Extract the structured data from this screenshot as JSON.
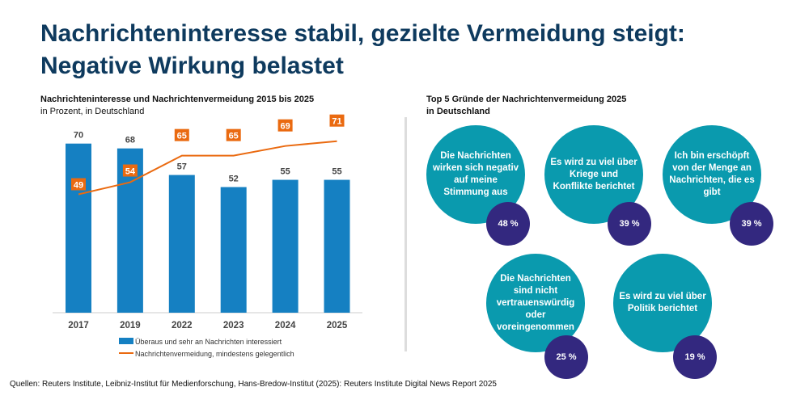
{
  "title": "Nachrichteninteresse stabil, gezielte Vermeidung steigt: Negative Wirkung belastet",
  "left": {
    "heading": "Nachrichteninteresse und Nachrichtenvermeidung 2015 bis 2025",
    "subheading": "in Prozent, in Deutschland"
  },
  "right": {
    "heading": "Top 5 Gründe der Nachrichtenvermeidung 2025",
    "subheading": "in Deutschland",
    "reasons": [
      {
        "text": "Die Nachrichten wirken sich negativ auf meine Stimmung aus",
        "value": "48 %"
      },
      {
        "text": "Es wird zu viel über Kriege und Konflikte berichtet",
        "value": "39 %"
      },
      {
        "text": "Ich bin erschöpft von der Menge an Nachrichten, die es gibt",
        "value": "39 %"
      },
      {
        "text": "Die Nachrichten sind nicht vertrauenswürdig oder voreingenommen",
        "value": "25 %"
      },
      {
        "text": "Es wird zu viel über Politik berichtet",
        "value": "19 %"
      }
    ],
    "colors": {
      "reason": "#0a9aae",
      "value": "#33287f"
    }
  },
  "source": "Quellen: Reuters Institute, Leibniz-Institut für Medienforschung, Hans-Bredow-Institut (2025): Reuters Institute Digital News Report 2025",
  "chart_data": {
    "type": "bar+line",
    "categories": [
      "2017",
      "2019",
      "2022",
      "2023",
      "2024",
      "2025"
    ],
    "series": [
      {
        "name": "Überaus und sehr an Nachrichten interessiert",
        "type": "bar",
        "color": "#1580c2",
        "values": [
          70,
          68,
          57,
          52,
          55,
          55
        ]
      },
      {
        "name": "Nachrichtenvermeidung, mindestens gelegentlich",
        "type": "line",
        "color": "#ea6a10",
        "values": [
          49,
          54,
          65,
          65,
          69,
          71
        ]
      }
    ],
    "ylim": [
      0,
      75
    ],
    "grid": false,
    "legend": "bottom"
  }
}
